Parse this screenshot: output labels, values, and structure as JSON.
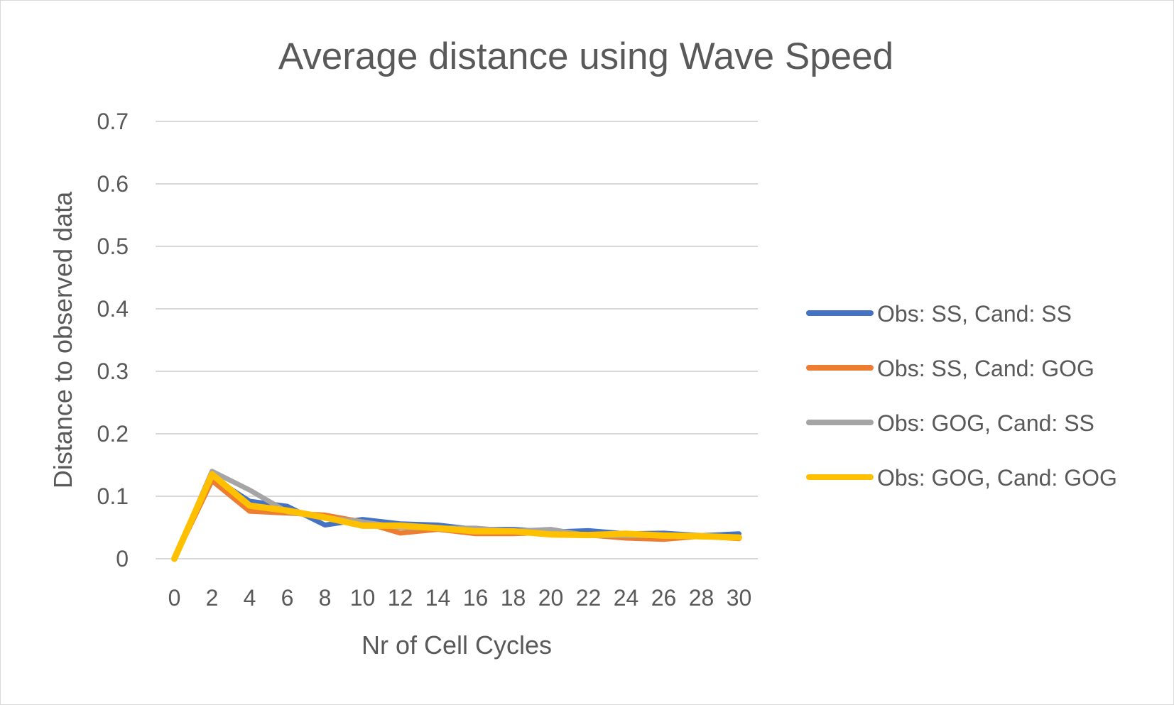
{
  "chart_data": {
    "type": "line",
    "title": "Average distance using Wave Speed",
    "xlabel": "Nr of Cell Cycles",
    "ylabel": "Distance to observed data",
    "x": [
      0,
      2,
      4,
      6,
      8,
      10,
      12,
      14,
      16,
      18,
      20,
      22,
      24,
      26,
      28,
      30
    ],
    "ylim": [
      0,
      0.7
    ],
    "yticks": [
      "0",
      "0.1",
      "0.2",
      "0.3",
      "0.4",
      "0.5",
      "0.6",
      "0.7"
    ],
    "xticks": [
      "0",
      "2",
      "4",
      "6",
      "8",
      "10",
      "12",
      "14",
      "16",
      "18",
      "20",
      "22",
      "24",
      "26",
      "28",
      "30"
    ],
    "grid": true,
    "legend_position": "right",
    "series": [
      {
        "name": "Obs: SS, Cand: SS",
        "color": "#4472C4",
        "values": [
          0,
          0.131,
          0.092,
          0.084,
          0.054,
          0.063,
          0.056,
          0.054,
          0.047,
          0.047,
          0.043,
          0.045,
          0.04,
          0.041,
          0.037,
          0.04
        ]
      },
      {
        "name": "Obs: SS, Cand: GOG",
        "color": "#ED7D31",
        "values": [
          0,
          0.125,
          0.076,
          0.073,
          0.07,
          0.059,
          0.041,
          0.047,
          0.04,
          0.04,
          0.042,
          0.038,
          0.033,
          0.031,
          0.036,
          0.032
        ]
      },
      {
        "name": "Obs: GOG, Cand: SS",
        "color": "#A5A5A5",
        "values": [
          0,
          0.14,
          0.11,
          0.075,
          0.066,
          0.059,
          0.05,
          0.049,
          0.049,
          0.044,
          0.047,
          0.037,
          0.037,
          0.037,
          0.035,
          0.034
        ]
      },
      {
        "name": "Obs: GOG, Cand: GOG",
        "color": "#FFC000",
        "values": [
          0,
          0.135,
          0.085,
          0.077,
          0.066,
          0.053,
          0.053,
          0.049,
          0.044,
          0.044,
          0.039,
          0.038,
          0.04,
          0.037,
          0.036,
          0.034
        ]
      }
    ]
  }
}
